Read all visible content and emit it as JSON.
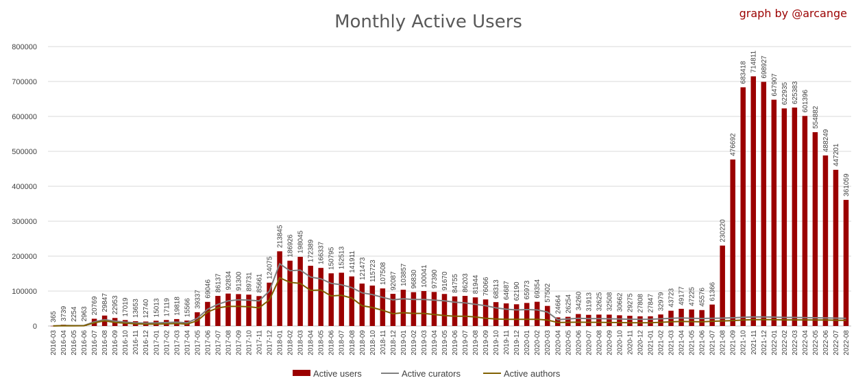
{
  "credit": "graph by @arcange",
  "chart_data": {
    "type": "bar",
    "title": "Monthly Active Users",
    "ylim": [
      0,
      800000
    ],
    "yticks": [
      0,
      100000,
      200000,
      300000,
      400000,
      500000,
      600000,
      700000,
      800000
    ],
    "grid": true,
    "legend_position": "bottom",
    "categories": [
      "2016-03",
      "2016-04",
      "2016-05",
      "2016-06",
      "2016-07",
      "2016-08",
      "2016-09",
      "2016-10",
      "2016-11",
      "2016-12",
      "2017-01",
      "2017-02",
      "2017-03",
      "2017-04",
      "2017-05",
      "2017-06",
      "2017-07",
      "2017-08",
      "2017-09",
      "2017-10",
      "2017-11",
      "2017-12",
      "2018-01",
      "2018-02",
      "2018-03",
      "2018-04",
      "2018-05",
      "2018-06",
      "2018-07",
      "2018-08",
      "2018-09",
      "2018-10",
      "2018-11",
      "2018-12",
      "2019-01",
      "2019-02",
      "2019-03",
      "2019-04",
      "2019-05",
      "2019-06",
      "2019-07",
      "2019-08",
      "2019-09",
      "2019-10",
      "2019-11",
      "2019-12",
      "2020-01",
      "2020-02",
      "2020-03",
      "2020-04",
      "2020-05",
      "2020-06",
      "2020-07",
      "2020-08",
      "2020-09",
      "2020-10",
      "2020-11",
      "2020-12",
      "2021-01",
      "2021-02",
      "2021-03",
      "2021-04",
      "2021-05",
      "2021-06",
      "2021-07",
      "2021-08",
      "2021-09",
      "2021-10",
      "2021-11",
      "2021-12",
      "2022-01",
      "2022-02",
      "2022-03",
      "2022-04",
      "2022-05",
      "2022-06",
      "2022-07",
      "2022-08"
    ],
    "series": [
      {
        "name": "Active users",
        "type": "bar",
        "color": "#9b0000",
        "values": [
          365,
          3739,
          2254,
          2963,
          20769,
          29847,
          22953,
          17019,
          13653,
          12740,
          15013,
          17119,
          19818,
          15566,
          39337,
          69046,
          86137,
          92834,
          91300,
          89731,
          85661,
          124075,
          213845,
          186926,
          198045,
          172389,
          166337,
          150795,
          152513,
          141911,
          121473,
          115723,
          107508,
          92087,
          103857,
          96830,
          100041,
          97390,
          91670,
          84755,
          86203,
          81944,
          76066,
          68313,
          64687,
          62190,
          65973,
          69354,
          57502,
          24664,
          26254,
          34260,
          31913,
          32625,
          32508,
          30662,
          29275,
          27808,
          27847,
          32979,
          43723,
          49177,
          47225,
          45576,
          61366,
          230220,
          476692,
          683418,
          714811,
          698927,
          647907,
          622935,
          625383,
          601396,
          554882,
          488249,
          447201,
          361059
        ]
      },
      {
        "name": "Active curators",
        "type": "line",
        "color": "#7f7f7f",
        "values": [
          200,
          1500,
          1200,
          1500,
          12000,
          18000,
          14000,
          11000,
          9000,
          8500,
          9000,
          10000,
          11000,
          9000,
          22000,
          48000,
          62000,
          72000,
          75000,
          74000,
          72000,
          100000,
          178000,
          158000,
          160000,
          140000,
          135000,
          122000,
          118000,
          110000,
          95000,
          90000,
          82000,
          75000,
          78000,
          76000,
          76000,
          74000,
          72000,
          68000,
          66000,
          62000,
          58000,
          52000,
          48000,
          46000,
          47000,
          46000,
          40000,
          18000,
          20000,
          22000,
          21000,
          21000,
          20500,
          20000,
          19500,
          19000,
          19500,
          20500,
          22000,
          23000,
          22000,
          21500,
          22000,
          22500,
          23500,
          25000,
          26000,
          26000,
          25500,
          24500,
          24500,
          24000,
          23500,
          23000,
          22500,
          22000
        ]
      },
      {
        "name": "Active authors",
        "type": "line",
        "color": "#806000",
        "values": [
          100,
          700,
          600,
          800,
          9000,
          15000,
          10000,
          8000,
          6000,
          5500,
          5500,
          6000,
          7000,
          5500,
          15000,
          40000,
          52000,
          56000,
          56000,
          55000,
          52000,
          75000,
          138000,
          125000,
          122000,
          102000,
          103000,
          86000,
          88000,
          80000,
          58000,
          53000,
          45000,
          35000,
          38000,
          36000,
          36000,
          33000,
          30000,
          28000,
          28000,
          26000,
          22000,
          20000,
          19000,
          19000,
          19000,
          19000,
          17000,
          10000,
          10500,
          11000,
          10500,
          10500,
          10000,
          9800,
          9500,
          9300,
          9500,
          10500,
          12000,
          13000,
          12500,
          12000,
          13500,
          14500,
          15500,
          17000,
          18000,
          18500,
          18000,
          17500,
          17500,
          17500,
          17000,
          17000,
          16500,
          16000
        ]
      }
    ]
  }
}
